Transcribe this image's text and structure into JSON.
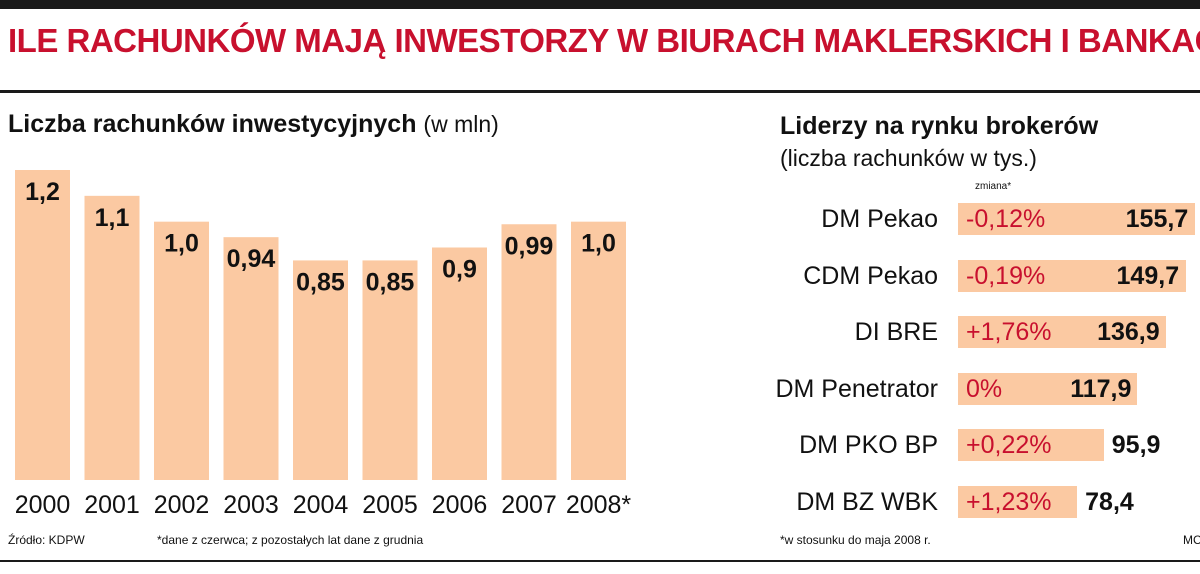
{
  "title": "ILE RACHUNKÓW MAJĄ INWESTORZY W BIURACH MAKLERSKICH I BANKACH",
  "left": {
    "title": "Liczba rachunków inwestycyjnych",
    "unit": "(w mln)",
    "source": "Źródło: KDPW",
    "footnote": "*dane z czerwca; z pozostałych lat dane z grudnia"
  },
  "right": {
    "title": "Liderzy na rynku brokerów",
    "subtitle": "(liczba rachunków w tys.)",
    "change_header": "zmiana*",
    "footnote": "*w stosunku do maja 2008 r.",
    "credit": "MC"
  },
  "colors": {
    "bar": "#fbc9a2",
    "title": "#c8102e",
    "change_text": "#c8102e"
  },
  "chart_data": [
    {
      "type": "bar",
      "title": "Liczba rachunków inwestycyjnych",
      "ylabel": "(w mln)",
      "categories": [
        "2000",
        "2001",
        "2002",
        "2003",
        "2004",
        "2005",
        "2006",
        "2007",
        "2008*"
      ],
      "values": [
        1.2,
        1.1,
        1.0,
        0.94,
        0.85,
        0.85,
        0.9,
        0.99,
        1.0
      ],
      "value_labels": [
        "1,2",
        "1,1",
        "1,0",
        "0,94",
        "0,85",
        "0,85",
        "0,9",
        "0,99",
        "1,0"
      ],
      "ylim": [
        0,
        1.2
      ],
      "grid": false
    },
    {
      "type": "bar",
      "orientation": "horizontal",
      "title": "Liderzy na rynku brokerów",
      "ylabel": "(liczba rachunków w tys.)",
      "categories": [
        "DM Pekao",
        "CDM Pekao",
        "DI BRE",
        "DM Penetrator",
        "DM PKO BP",
        "DM BZ WBK"
      ],
      "values": [
        155.7,
        149.7,
        136.9,
        117.9,
        95.9,
        78.4
      ],
      "value_labels": [
        "155,7",
        "149,7",
        "136,9",
        "117,9",
        "95,9",
        "78,4"
      ],
      "changes": [
        "-0,12%",
        "-0,19%",
        "+1,76%",
        "0%",
        "+0,22%",
        "+1,23%"
      ],
      "grid": false
    }
  ]
}
